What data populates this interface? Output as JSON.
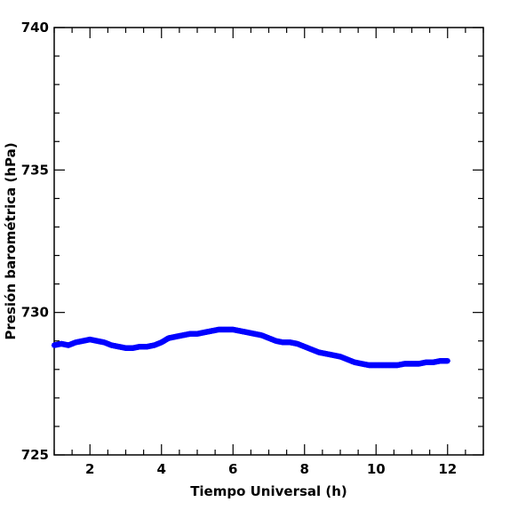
{
  "chart_data": {
    "type": "scatter",
    "xlabel": "Tiempo Universal (h)",
    "ylabel": "Presión barométrica (hPa)",
    "xlim": [
      1,
      13
    ],
    "ylim": [
      725,
      740
    ],
    "x_ticks": [
      2,
      4,
      6,
      8,
      10,
      12
    ],
    "y_ticks": [
      725,
      730,
      735,
      740
    ],
    "x_tick_labels": [
      "2",
      "4",
      "6",
      "8",
      "10",
      "12"
    ],
    "y_tick_labels": [
      "725",
      "730",
      "735",
      "740"
    ],
    "grid": false,
    "marker": "star",
    "color": "#0000ff",
    "series": [
      {
        "x": [
          1.0,
          1.2,
          1.4,
          1.6,
          1.8,
          2.0,
          2.2,
          2.4,
          2.6,
          2.8,
          3.0,
          3.2,
          3.4,
          3.6,
          3.8,
          4.0,
          4.2,
          4.4,
          4.6,
          4.8,
          5.0,
          5.2,
          5.4,
          5.6,
          5.8,
          6.0,
          6.2,
          6.4,
          6.6,
          6.8,
          7.0,
          7.2,
          7.4,
          7.6,
          7.8,
          8.0,
          8.2,
          8.4,
          8.6,
          8.8,
          9.0,
          9.2,
          9.4,
          9.6,
          9.8,
          10.0,
          10.2,
          10.4,
          10.6,
          10.8,
          11.0,
          11.2,
          11.4,
          11.6,
          11.8,
          12.0
        ],
        "y": [
          728.85,
          728.9,
          728.85,
          728.95,
          729.0,
          729.05,
          729.0,
          728.95,
          728.85,
          728.8,
          728.75,
          728.75,
          728.8,
          728.8,
          728.85,
          728.95,
          729.1,
          729.15,
          729.2,
          729.25,
          729.25,
          729.3,
          729.35,
          729.4,
          729.4,
          729.4,
          729.35,
          729.3,
          729.25,
          729.2,
          729.1,
          729.0,
          728.95,
          728.95,
          728.9,
          728.8,
          728.7,
          728.6,
          728.55,
          728.5,
          728.45,
          728.35,
          728.25,
          728.2,
          728.15,
          728.15,
          728.15,
          728.15,
          728.15,
          728.2,
          728.2,
          728.2,
          728.25,
          728.25,
          728.3,
          728.3
        ]
      }
    ]
  }
}
